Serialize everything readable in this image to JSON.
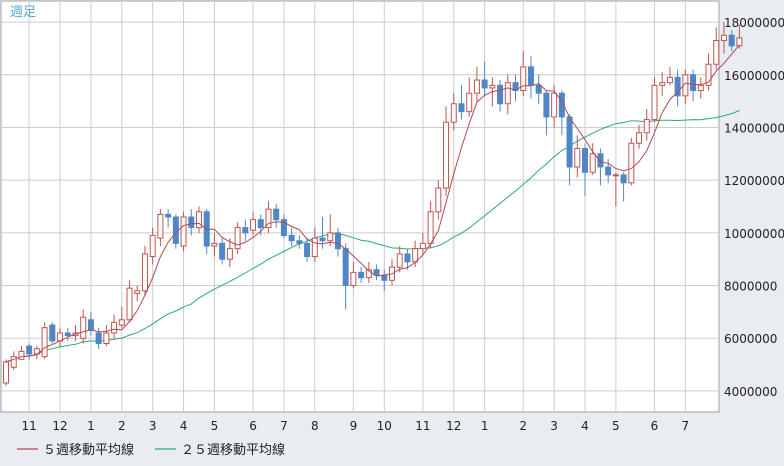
{
  "chart_data": {
    "type": "candlestick",
    "title": "週足",
    "price_range": [
      3200000,
      18800000
    ],
    "y_ticks": [
      4000000,
      6000000,
      8000000,
      10000000,
      12000000,
      14000000,
      16000000,
      18000000
    ],
    "y_tick_labels": [
      "4000000",
      "6000000",
      "8000000",
      "10000000",
      "12000000",
      "14000000",
      "16000000",
      "18000000"
    ],
    "x_ticks": [
      {
        "week": 3,
        "label": "11"
      },
      {
        "week": 7,
        "label": "12"
      },
      {
        "week": 11,
        "label": "1"
      },
      {
        "week": 15,
        "label": "2"
      },
      {
        "week": 19,
        "label": "3"
      },
      {
        "week": 23,
        "label": "4"
      },
      {
        "week": 27,
        "label": "5"
      },
      {
        "week": 32,
        "label": "6"
      },
      {
        "week": 36,
        "label": "7"
      },
      {
        "week": 40,
        "label": "8"
      },
      {
        "week": 45,
        "label": "9"
      },
      {
        "week": 49,
        "label": "10"
      },
      {
        "week": 54,
        "label": "11"
      },
      {
        "week": 58,
        "label": "12"
      },
      {
        "week": 62,
        "label": "1"
      },
      {
        "week": 67,
        "label": "2"
      },
      {
        "week": 71,
        "label": "3"
      },
      {
        "week": 75,
        "label": "4"
      },
      {
        "week": 79,
        "label": "5"
      },
      {
        "week": 84,
        "label": "6"
      },
      {
        "week": 88,
        "label": "7"
      }
    ],
    "grid": true,
    "colors": {
      "up": "#c2544f",
      "down": "#4f86c8",
      "ma5": "#b04a52",
      "ma25": "#2fa87a",
      "grid": "#c9ccd1",
      "plot_bg": "#ffffff",
      "panel_bg": "#e9ecf0",
      "title": "#5aa6d6",
      "axis_text": "#222222"
    },
    "legend": {
      "placement": "bottom-left",
      "ma5_label": "５週移動平均線",
      "ma25_label": "２５週移動平均線"
    },
    "candles": [
      [
        4300000,
        5100000,
        5200000,
        4200000
      ],
      [
        4900000,
        5300000,
        5500000,
        4800000
      ],
      [
        5200000,
        5500000,
        5700000,
        5200000
      ],
      [
        5700000,
        5400000,
        5800000,
        5200000
      ],
      [
        5400000,
        5600000,
        5700000,
        5200000
      ],
      [
        5300000,
        6400000,
        6600000,
        5200000
      ],
      [
        6500000,
        5900000,
        6600000,
        5800000
      ],
      [
        5900000,
        6200000,
        6400000,
        5700000
      ],
      [
        6200000,
        6100000,
        6400000,
        5900000
      ],
      [
        6100000,
        6200000,
        6500000,
        5900000
      ],
      [
        6000000,
        6800000,
        7100000,
        5800000
      ],
      [
        6700000,
        6300000,
        7000000,
        6100000
      ],
      [
        6200000,
        5800000,
        6400000,
        5600000
      ],
      [
        5800000,
        6200000,
        6500000,
        5700000
      ],
      [
        6200000,
        6600000,
        6900000,
        6000000
      ],
      [
        6500000,
        6700000,
        7200000,
        6400000
      ],
      [
        6700000,
        7900000,
        8200000,
        6600000
      ],
      [
        7700000,
        7800000,
        8000000,
        7400000
      ],
      [
        7800000,
        9200000,
        9500000,
        7600000
      ],
      [
        9100000,
        9900000,
        10200000,
        8800000
      ],
      [
        9800000,
        10700000,
        10900000,
        9500000
      ],
      [
        10700000,
        10600000,
        10900000,
        10200000
      ],
      [
        10600000,
        9600000,
        10700000,
        9400000
      ],
      [
        9500000,
        10600000,
        10800000,
        9300000
      ],
      [
        10600000,
        10200000,
        10900000,
        9900000
      ],
      [
        10200000,
        10800000,
        11000000,
        10000000
      ],
      [
        10800000,
        9500000,
        10900000,
        9200000
      ],
      [
        9500000,
        9600000,
        10000000,
        9100000
      ],
      [
        9600000,
        9000000,
        9800000,
        8800000
      ],
      [
        9000000,
        9400000,
        9800000,
        8700000
      ],
      [
        9400000,
        10200000,
        10400000,
        9200000
      ],
      [
        10200000,
        10000000,
        10500000,
        9700000
      ],
      [
        10100000,
        10500000,
        10800000,
        9900000
      ],
      [
        10500000,
        10200000,
        10700000,
        9900000
      ],
      [
        10200000,
        10900000,
        11200000,
        10000000
      ],
      [
        10900000,
        10500000,
        11100000,
        10200000
      ],
      [
        10500000,
        9900000,
        10700000,
        9800000
      ],
      [
        9900000,
        9700000,
        10200000,
        9500000
      ],
      [
        9700000,
        9600000,
        9900000,
        9400000
      ],
      [
        9600000,
        9100000,
        9800000,
        8900000
      ],
      [
        9100000,
        9800000,
        10200000,
        8900000
      ],
      [
        9800000,
        9700000,
        10600000,
        9400000
      ],
      [
        9700000,
        10000000,
        10700000,
        9500000
      ],
      [
        10000000,
        9400000,
        10200000,
        9100000
      ],
      [
        9400000,
        8000000,
        9600000,
        7100000
      ],
      [
        8000000,
        8500000,
        8900000,
        7900000
      ],
      [
        8500000,
        8300000,
        8700000,
        8100000
      ],
      [
        8300000,
        8600000,
        8900000,
        8100000
      ],
      [
        8600000,
        8400000,
        8800000,
        8200000
      ],
      [
        8400000,
        8200000,
        8600000,
        7800000
      ],
      [
        8200000,
        8700000,
        9000000,
        8000000
      ],
      [
        8700000,
        9200000,
        9500000,
        8500000
      ],
      [
        9200000,
        8900000,
        9400000,
        8600000
      ],
      [
        8900000,
        9400000,
        9700000,
        8700000
      ],
      [
        9400000,
        9600000,
        10000000,
        9200000
      ],
      [
        9600000,
        10800000,
        11200000,
        9400000
      ],
      [
        10800000,
        11700000,
        12000000,
        10500000
      ],
      [
        11700000,
        14200000,
        14800000,
        11400000
      ],
      [
        14200000,
        14900000,
        15300000,
        13900000
      ],
      [
        14900000,
        14600000,
        15600000,
        14300000
      ],
      [
        14600000,
        15300000,
        15900000,
        14400000
      ],
      [
        15300000,
        15800000,
        16300000,
        15000000
      ],
      [
        15800000,
        15500000,
        16500000,
        15200000
      ],
      [
        15500000,
        15600000,
        15900000,
        14800000
      ],
      [
        15600000,
        14900000,
        15800000,
        14600000
      ],
      [
        14900000,
        15700000,
        16000000,
        14500000
      ],
      [
        15700000,
        15400000,
        16000000,
        15000000
      ],
      [
        15400000,
        16300000,
        16900000,
        15200000
      ],
      [
        16300000,
        15600000,
        16700000,
        15100000
      ],
      [
        15600000,
        15300000,
        16000000,
        14900000
      ],
      [
        15300000,
        14400000,
        15400000,
        13700000
      ],
      [
        14400000,
        15300000,
        15600000,
        14000000
      ],
      [
        15300000,
        14400000,
        15400000,
        13700000
      ],
      [
        14400000,
        12500000,
        14500000,
        11800000
      ],
      [
        12500000,
        13200000,
        13700000,
        12100000
      ],
      [
        13200000,
        12300000,
        13400000,
        11400000
      ],
      [
        12300000,
        13000000,
        13400000,
        12200000
      ],
      [
        13000000,
        12500000,
        13200000,
        11800000
      ],
      [
        12500000,
        12200000,
        12800000,
        11900000
      ],
      [
        12200000,
        12200000,
        12300000,
        11000000
      ],
      [
        12200000,
        11900000,
        12300000,
        11200000
      ],
      [
        11900000,
        13400000,
        13600000,
        11800000
      ],
      [
        13400000,
        13800000,
        14100000,
        13200000
      ],
      [
        13800000,
        14300000,
        14700000,
        13500000
      ],
      [
        14300000,
        15600000,
        15900000,
        14200000
      ],
      [
        15600000,
        15700000,
        16100000,
        15200000
      ],
      [
        15700000,
        15900000,
        16300000,
        15600000
      ],
      [
        15900000,
        15200000,
        16200000,
        14800000
      ],
      [
        15200000,
        16000000,
        16200000,
        14900000
      ],
      [
        16000000,
        15400000,
        16200000,
        15000000
      ],
      [
        15400000,
        15600000,
        15900000,
        15100000
      ],
      [
        15600000,
        16400000,
        16800000,
        15400000
      ],
      [
        16400000,
        17300000,
        17800000,
        16200000
      ],
      [
        17300000,
        17500000,
        18000000,
        16800000
      ],
      [
        17500000,
        17100000,
        17700000,
        16900000
      ],
      [
        17100000,
        17400000,
        17900000,
        17000000
      ]
    ]
  }
}
